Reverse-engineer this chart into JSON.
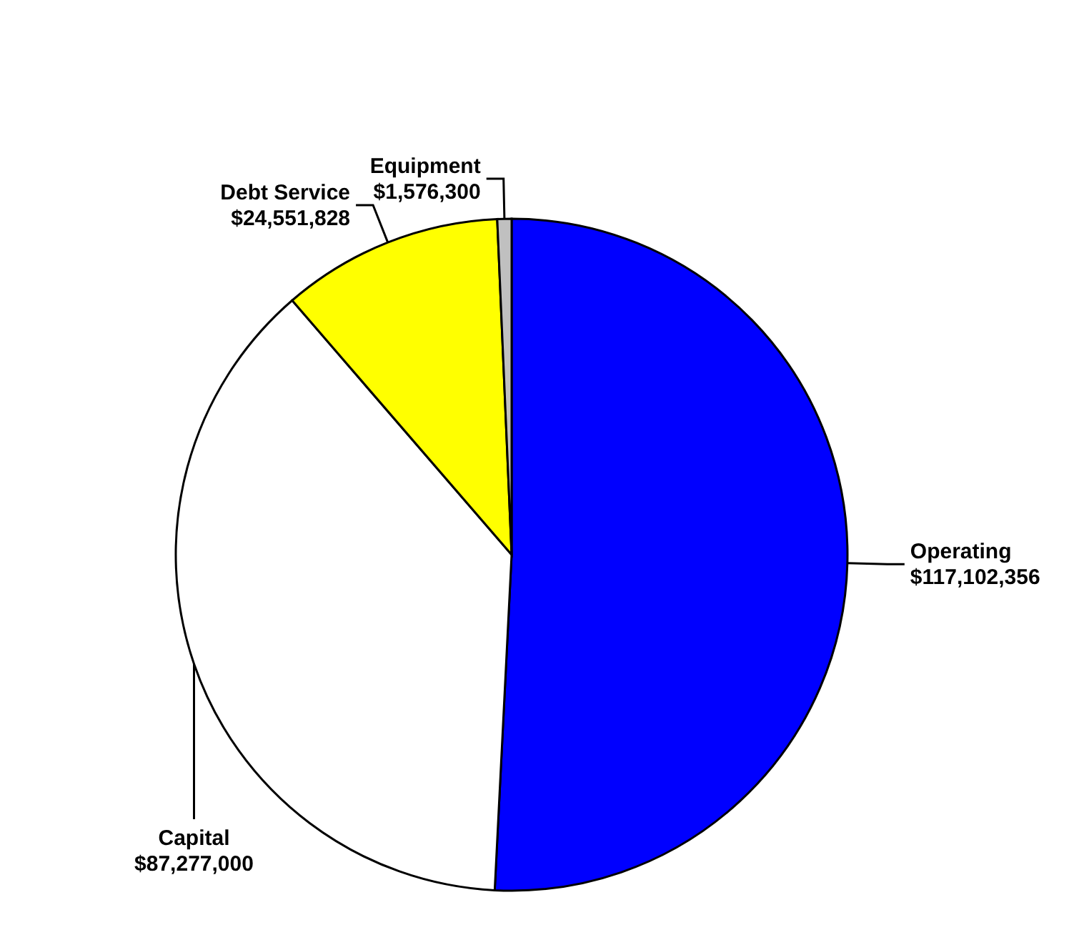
{
  "chart_data": {
    "type": "pie",
    "categories": [
      "Operating",
      "Capital",
      "Debt Service",
      "Equipment"
    ],
    "values": [
      117102356,
      87277000,
      24551828,
      1576300
    ],
    "value_labels": [
      "$117,102,356",
      "$87,277,000",
      "$24,551,828",
      "$1,576,300"
    ],
    "colors": [
      "#0000ff",
      "#ffffff",
      "#ffff00",
      "#c0c0c0"
    ],
    "legend": false
  }
}
